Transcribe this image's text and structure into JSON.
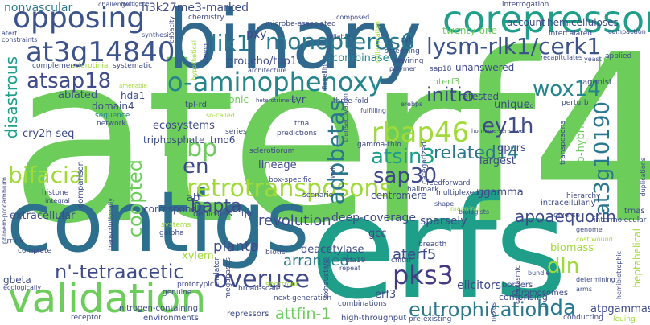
{
  "cloud": {
    "big": [
      {
        "text": "aterf4",
        "color": "#6ccd5a"
      },
      {
        "text": "erfs",
        "color": "#1f9e89"
      },
      {
        "text": "contigs",
        "color": "#2d708e"
      },
      {
        "text": "binary",
        "color": "#31688e"
      },
      {
        "text": "validation",
        "color": "#6ccd5a"
      },
      {
        "text": "corepressor",
        "color": "#1f9e89"
      },
      {
        "text": "opposing",
        "color": "#3b528b"
      },
      {
        "text": "at3g14840",
        "color": "#3b528b"
      },
      {
        "text": "lysm-rlk1/cerk1",
        "color": "#3b528b"
      },
      {
        "text": "o-aminophenoxy",
        "color": "#25858e"
      },
      {
        "text": "retrotransposons",
        "color": "#a0da39"
      },
      {
        "text": "monopteros6",
        "color": "#2a788e"
      },
      {
        "text": "lik1",
        "color": "#2a788e"
      },
      {
        "text": "atsap18",
        "color": "#3e4a89"
      },
      {
        "text": "rbap46",
        "color": "#a0da39"
      },
      {
        "text": "atsin3",
        "color": "#1f9e89"
      },
      {
        "text": "sap30",
        "color": "#3e4a89"
      },
      {
        "text": "related14",
        "color": "#2a788e"
      },
      {
        "text": "pks3",
        "color": "#443983"
      },
      {
        "text": "overuse",
        "color": "#3e4a89"
      },
      {
        "text": "eutrophication",
        "color": "#2a788e"
      },
      {
        "text": "n'-tetraacetic",
        "color": "#3e4a89"
      },
      {
        "text": "bifacial",
        "color": "#a0da39"
      },
      {
        "text": "adpbetas",
        "color": "#2a788e"
      },
      {
        "text": "at3g10190",
        "color": "#2a788e"
      },
      {
        "text": "wox14",
        "color": "#25858e"
      },
      {
        "text": "initio",
        "color": "#3e4a89"
      },
      {
        "text": "rebp",
        "color": "#6ccd5a"
      },
      {
        "text": "coopted",
        "color": "#6ccd5a"
      },
      {
        "text": "disastrous",
        "color": "#1f9e89"
      },
      {
        "text": "bapta",
        "color": "#3e4a89"
      },
      {
        "text": "ey1h",
        "color": "#3e4a89"
      },
      {
        "text": "lbd4",
        "color": "#6ccd5a"
      },
      {
        "text": "en",
        "color": "#3e4a89"
      },
      {
        "text": "hda",
        "color": "#2a788e"
      },
      {
        "text": "dln",
        "color": "#a0da39"
      },
      {
        "text": "aterf5",
        "color": "#3e4a89"
      },
      {
        "text": "apoaequorin",
        "color": "#3e4a89"
      },
      {
        "text": "attfin-1",
        "color": "#6ccd5a"
      },
      {
        "text": "diphosphate",
        "color": "#6ccd5a"
      },
      {
        "text": "planta",
        "color": "#3e4a89"
      },
      {
        "text": "revolution",
        "color": "#3e4a89"
      },
      {
        "text": "arranged",
        "color": "#2a788e"
      }
    ],
    "small": [
      {
        "text": "nonvascular",
        "color": "#2a788e"
      },
      {
        "text": "h3k27me3-marked",
        "color": "#3e4a89"
      },
      {
        "text": "pxy",
        "color": "#3e4a89"
      },
      {
        "text": "groucho/tup1",
        "color": "#3e4a89"
      },
      {
        "text": "recombinase",
        "color": "#25858e"
      },
      {
        "text": "twenty-one",
        "color": "#6ccd5a"
      },
      {
        "text": "account",
        "color": "#3e4a89"
      },
      {
        "text": "hemicelluloses",
        "color": "#3e4a89"
      },
      {
        "text": "unanswered",
        "color": "#3e4a89"
      },
      {
        "text": "nterf3",
        "color": "#6ccd5a"
      },
      {
        "text": "hda1",
        "color": "#3e4a89"
      },
      {
        "text": "oligogalacturonic",
        "color": "#6ccd5a"
      },
      {
        "text": "tyr",
        "color": "#3e4a89"
      },
      {
        "text": "retested",
        "color": "#3e4a89"
      },
      {
        "text": "unique",
        "color": "#3e4a89"
      },
      {
        "text": "ablated",
        "color": "#3e4a89"
      },
      {
        "text": "domain4",
        "color": "#3e4a89"
      },
      {
        "text": "cry2h-seq",
        "color": "#3e4a89"
      },
      {
        "text": "ecosystems",
        "color": "#3e4a89"
      },
      {
        "text": "triphosphate",
        "color": "#3e4a89"
      },
      {
        "text": "tmo6",
        "color": "#3e4a89"
      },
      {
        "text": "gpcrs",
        "color": "#3e4a89"
      },
      {
        "text": "largest",
        "color": "#3e4a89"
      },
      {
        "text": "lineage",
        "color": "#3e4a89"
      },
      {
        "text": "centromere",
        "color": "#3e4a89"
      },
      {
        "text": "ggamma",
        "color": "#3e4a89"
      },
      {
        "text": "two-hybrid",
        "color": "#6ccd5a"
      },
      {
        "text": "extracellular",
        "color": "#3e4a89"
      },
      {
        "text": "correspond",
        "color": "#3e4a89"
      },
      {
        "text": "deep-coverage",
        "color": "#3e4a89"
      },
      {
        "text": "sparsely",
        "color": "#3e4a89"
      },
      {
        "text": "gcc",
        "color": "#3e4a89"
      },
      {
        "text": "biomass",
        "color": "#a0da39"
      },
      {
        "text": "deacetylase",
        "color": "#3e4a89"
      },
      {
        "text": "xylem",
        "color": "#a0da39"
      },
      {
        "text": "elicitors",
        "color": "#3e4a89"
      },
      {
        "text": "erf3",
        "color": "#3e4a89"
      },
      {
        "text": "atpgammas",
        "color": "#3e4a89"
      },
      {
        "text": "gbeta",
        "color": "#3e4a89"
      },
      {
        "text": "heptahelical",
        "color": "#a0da39"
      },
      {
        "text": "comprising",
        "color": "#3e4a89"
      },
      {
        "text": "environments",
        "color": "#3e4a89"
      },
      {
        "text": "high-throughput",
        "color": "#3e4a89"
      },
      {
        "text": "nitrogen-containing",
        "color": "#3e4a89"
      },
      {
        "text": "receptor",
        "color": "#3e4a89"
      },
      {
        "text": "repressors",
        "color": "#3e4a89"
      },
      {
        "text": "pre-existing",
        "color": "#3e4a89"
      },
      {
        "text": "conducting",
        "color": "#3e4a89"
      },
      {
        "text": "leuing",
        "color": "#a0da39"
      },
      {
        "text": "sequence",
        "color": "#25858e"
      },
      {
        "text": "network",
        "color": "#3e4a89"
      },
      {
        "text": "scenario",
        "color": "#3e4a89"
      },
      {
        "text": "box-specific",
        "color": "#3e4a89"
      },
      {
        "text": "sclerotiorum",
        "color": "#3e4a89"
      },
      {
        "text": "tpl-rd",
        "color": "#3e4a89"
      },
      {
        "text": "ab",
        "color": "#3e4a89"
      },
      {
        "text": "dedicates",
        "color": "#3e4a89"
      },
      {
        "text": "tpr",
        "color": "#3e4a89"
      },
      {
        "text": "systems",
        "color": "#a0da39"
      },
      {
        "text": "galpha",
        "color": "#3e4a89"
      },
      {
        "text": "chelator",
        "color": "#3e4a89"
      },
      {
        "text": "megabases",
        "color": "#3e4a89"
      },
      {
        "text": "biotic",
        "color": "#3e4a89"
      },
      {
        "text": "shortroot",
        "color": "#a0da39"
      },
      {
        "text": "broad-scale",
        "color": "#3e4a89"
      },
      {
        "text": "next-generation",
        "color": "#3e4a89"
      },
      {
        "text": "prototypic",
        "color": "#3e4a89"
      },
      {
        "text": "genuine",
        "color": "#3e4a89"
      },
      {
        "text": "complete",
        "color": "#3e4a89"
      },
      {
        "text": "lrr-rlk",
        "color": "#3e4a89"
      },
      {
        "text": "ecologically",
        "color": "#3e4a89"
      },
      {
        "text": "combinations",
        "color": "#3e4a89"
      },
      {
        "text": "hda19",
        "color": "#3e4a89"
      },
      {
        "text": "chitin",
        "color": "#3e4a89"
      },
      {
        "text": "breadth",
        "color": "#3e4a89"
      },
      {
        "text": "exhaustive",
        "color": "#3e4a89"
      },
      {
        "text": "borders",
        "color": "#3e4a89"
      },
      {
        "text": "chromosomes",
        "color": "#3e4a89"
      },
      {
        "text": "intracellularly",
        "color": "#3e4a89"
      },
      {
        "text": "diverse",
        "color": "#3e4a89"
      },
      {
        "text": "hierarchy",
        "color": "#3e4a89"
      },
      {
        "text": "intermolecular",
        "color": "#3e4a89"
      },
      {
        "text": "trnas",
        "color": "#3e4a89"
      },
      {
        "text": "multiplexed",
        "color": "#3e4a89"
      },
      {
        "text": "feedforward",
        "color": "#3e4a89"
      },
      {
        "text": "categorized",
        "color": "#3e4a89"
      },
      {
        "text": "hallmark",
        "color": "#3e4a89"
      },
      {
        "text": "gamma-thio",
        "color": "#3e4a89"
      },
      {
        "text": "transposons",
        "color": "#3e4a89"
      },
      {
        "text": "agonist",
        "color": "#3e4a89"
      },
      {
        "text": "perturb",
        "color": "#3e4a89"
      },
      {
        "text": "three-fold",
        "color": "#3e4a89"
      },
      {
        "text": "predictions",
        "color": "#3e4a89"
      },
      {
        "text": "series",
        "color": "#3e4a89"
      },
      {
        "text": "trna",
        "color": "#3e4a89"
      },
      {
        "text": "chemistry",
        "color": "#3e4a89"
      },
      {
        "text": "microbe-associated",
        "color": "#3e4a89"
      },
      {
        "text": "architecture",
        "color": "#3e4a89"
      },
      {
        "text": "polymer",
        "color": "#3e4a89"
      },
      {
        "text": "rewiring",
        "color": "#3e4a89"
      },
      {
        "text": "screening",
        "color": "#3e4a89"
      },
      {
        "text": "intercalated",
        "color": "#3e4a89"
      },
      {
        "text": "interrogation",
        "color": "#3e4a89"
      },
      {
        "text": "composed",
        "color": "#3e4a89"
      },
      {
        "text": "reliable",
        "color": "#3e4a89"
      },
      {
        "text": "cyt",
        "color": "#3e4a89"
      },
      {
        "text": "sap18",
        "color": "#3e4a89"
      },
      {
        "text": "applied",
        "color": "#3e4a89"
      },
      {
        "text": "recapitulates",
        "color": "#3e4a89"
      },
      {
        "text": "compaction",
        "color": "#3e4a89"
      },
      {
        "text": "yeast",
        "color": "#3e4a89"
      },
      {
        "text": "complement",
        "color": "#3e4a89"
      },
      {
        "text": "sclerotinia",
        "color": "#a0da39"
      },
      {
        "text": "systematic",
        "color": "#3e4a89"
      },
      {
        "text": "synthesis",
        "color": "#3e4a89"
      },
      {
        "text": "flagellin",
        "color": "#3e4a89"
      },
      {
        "text": "capacity",
        "color": "#3e4a89"
      },
      {
        "text": "challenge",
        "color": "#3e4a89"
      },
      {
        "text": "multigene",
        "color": "#3e4a89"
      },
      {
        "text": "constraints",
        "color": "#3e4a89"
      },
      {
        "text": "aterf",
        "color": "#3e4a89"
      },
      {
        "text": "hypothetical",
        "color": "#a0da39"
      },
      {
        "text": "collaboration",
        "color": "#a0da39"
      },
      {
        "text": "strong",
        "color": "#3e4a89"
      },
      {
        "text": "amenable",
        "color": "#a0da39"
      },
      {
        "text": "histone",
        "color": "#3e4a89"
      },
      {
        "text": "integral",
        "color": "#3e4a89"
      },
      {
        "text": "phloem-procambium",
        "color": "#3e4a89"
      },
      {
        "text": "transcriptionally",
        "color": "#3e4a89"
      },
      {
        "text": "comparison",
        "color": "#3e4a89"
      },
      {
        "text": "cost wound",
        "color": "#a0da39"
      },
      {
        "text": "genome",
        "color": "#3e4a89"
      },
      {
        "text": "mapping",
        "color": "#a0da39"
      },
      {
        "text": "shape",
        "color": "#3e4a89"
      },
      {
        "text": "hemibiotrophic",
        "color": "#3e4a89"
      },
      {
        "text": "nexus",
        "color": "#3e4a89"
      },
      {
        "text": "cytoplasmic",
        "color": "#3e4a89"
      },
      {
        "text": "bundle",
        "color": "#3e4a89"
      },
      {
        "text": "determining",
        "color": "#3e4a89"
      },
      {
        "text": "arms",
        "color": "#3e4a89"
      },
      {
        "text": "biologists",
        "color": "#3e4a89"
      },
      {
        "text": "hormone-sensitive",
        "color": "#3e4a89"
      },
      {
        "text": "lcd",
        "color": "#3e4a89"
      },
      {
        "text": "erebps",
        "color": "#3e4a89"
      },
      {
        "text": "transactivation",
        "color": "#3e4a89"
      },
      {
        "text": "heterotrimeric",
        "color": "#3e4a89"
      },
      {
        "text": "so-called",
        "color": "#a0da39"
      },
      {
        "text": "fulfilling",
        "color": "#3e4a89"
      },
      {
        "text": "duplications",
        "color": "#3e4a89"
      },
      {
        "text": "repeat",
        "color": "#3e4a89"
      },
      {
        "text": "wall",
        "color": "#3e4a89"
      }
    ]
  }
}
